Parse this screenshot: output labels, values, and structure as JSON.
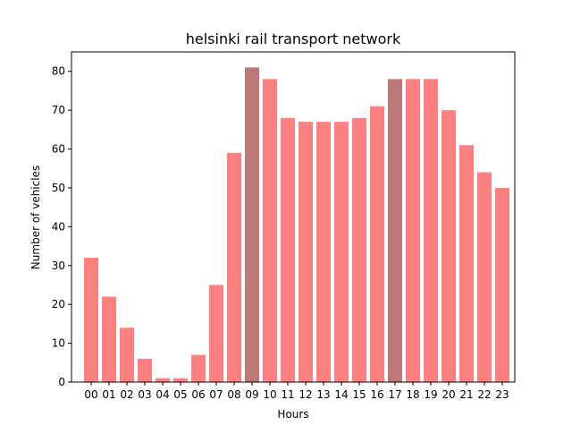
{
  "chart_data": {
    "type": "bar",
    "title": "helsinki rail transport network",
    "xlabel": "Hours",
    "ylabel": "Number of vehicles",
    "categories": [
      "00",
      "01",
      "02",
      "03",
      "04",
      "05",
      "06",
      "07",
      "08",
      "09",
      "10",
      "11",
      "12",
      "13",
      "14",
      "15",
      "16",
      "17",
      "18",
      "19",
      "20",
      "21",
      "22",
      "23"
    ],
    "values": [
      32,
      22,
      14,
      6,
      1,
      1,
      7,
      25,
      59,
      81,
      78,
      68,
      67,
      67,
      67,
      68,
      71,
      78,
      78,
      78,
      70,
      61,
      54,
      50
    ],
    "highlighted_categories": [
      "09",
      "17"
    ],
    "ylim": [
      0,
      85
    ],
    "yticks": [
      0,
      10,
      20,
      30,
      40,
      50,
      60,
      70,
      80
    ],
    "grid": false,
    "legend": "none",
    "colors": {
      "bar": "#ff8080",
      "highlight": "#bf7878",
      "axis": "#000000"
    }
  }
}
